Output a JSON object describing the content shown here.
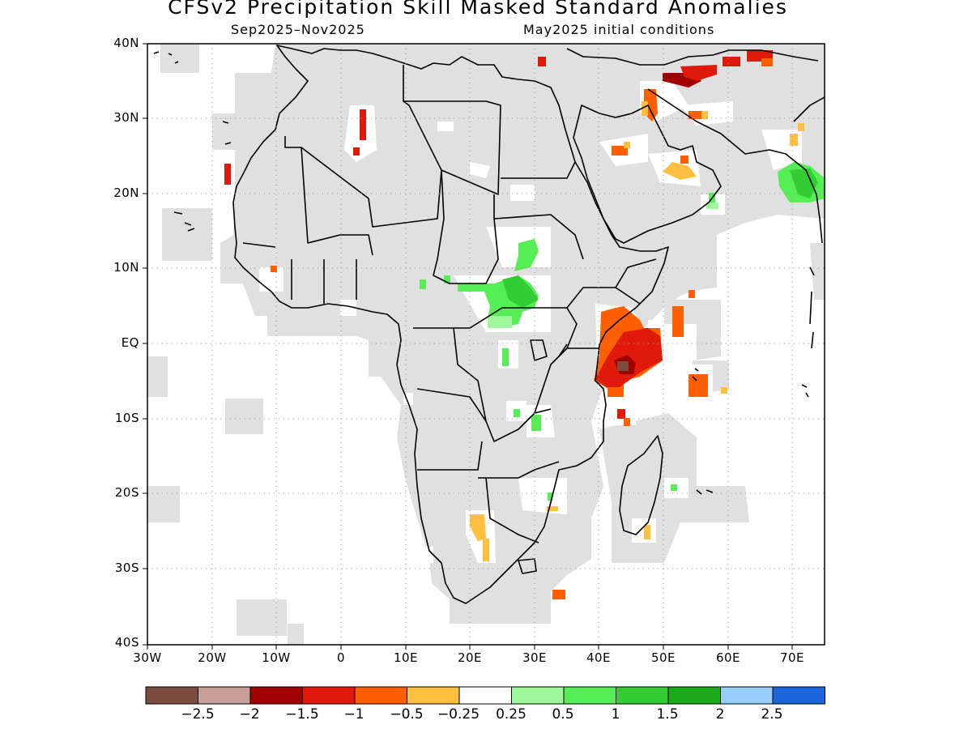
{
  "title": "CFSv2 Precipitation Skill Masked Standard Anomalies",
  "subtitle_left": "Sep2025–Nov2025",
  "subtitle_right": "May2025 initial conditions",
  "y_ticks": [
    "40N",
    "30N",
    "20N",
    "10N",
    "EQ",
    "10S",
    "20S",
    "30S",
    "40S"
  ],
  "x_ticks": [
    "30W",
    "20W",
    "10W",
    "0",
    "10E",
    "20E",
    "30E",
    "40E",
    "50E",
    "60E",
    "70E"
  ],
  "colorbar": {
    "colors": [
      "#7b4b40",
      "#c89e98",
      "#a00000",
      "#e01a0a",
      "#ff5f00",
      "#ffc040",
      "#ffffff",
      "#9ef99a",
      "#55ee55",
      "#33cc33",
      "#1aaa1a",
      "#99ccff",
      "#1a66dd"
    ],
    "labels": [
      "−2.5",
      "−2",
      "−1.5",
      "−1",
      "−0.5",
      "−0.25",
      "0.25",
      "0.5",
      "1",
      "1.5",
      "2",
      "2.5"
    ]
  },
  "map_colors": {
    "masked_gray": "#e0e0e0",
    "land_outline": "#000000",
    "grid": "#999999"
  },
  "chart_data": {
    "type": "heatmap",
    "title": "CFSv2 Precipitation Skill Masked Standard Anomalies",
    "subtitle": "Sep2025–Nov2025 / May2025 initial conditions",
    "xlim": [
      -30,
      75
    ],
    "ylim": [
      -40,
      40
    ],
    "x_ticks": [
      "30W",
      "20W",
      "10W",
      "0",
      "10E",
      "20E",
      "30E",
      "40E",
      "50E",
      "60E",
      "70E"
    ],
    "y_ticks": [
      "40N",
      "30N",
      "20N",
      "10N",
      "EQ",
      "10S",
      "20S",
      "30S",
      "40S"
    ],
    "levels": [
      -2.5,
      -2,
      -1.5,
      -1,
      -0.5,
      -0.25,
      0.25,
      0.5,
      1,
      1.5,
      2,
      2.5
    ],
    "grid": true,
    "anomaly_regions": [
      {
        "region": "Somalia / Kenya coast",
        "lon": [
          40,
          52
        ],
        "lat": [
          -7,
          5
        ],
        "level": "-1.5 to -1"
      },
      {
        "region": "Central Sudan / South Sudan",
        "lon": [
          26,
          34
        ],
        "lat": [
          2,
          14
        ],
        "level": "0.5 to 1"
      },
      {
        "region": "Arabian Sea / Gujarat coast",
        "lon": [
          67,
          75
        ],
        "lat": [
          18,
          23
        ],
        "level": "1 to 1.5"
      },
      {
        "region": "Iran / Iraq",
        "lon": [
          40,
          67
        ],
        "lat": [
          30,
          37
        ],
        "level": "-1.5 to -0.5"
      },
      {
        "region": "Western Indian Ocean near Seychelles",
        "lon": [
          54,
          60
        ],
        "lat": [
          -7,
          -4
        ],
        "level": "-1 to -0.5"
      },
      {
        "region": "Western Sahara coast",
        "lon": [
          -17,
          -16
        ],
        "lat": [
          21,
          24
        ],
        "level": "-1 to -0.5"
      },
      {
        "region": "Southern Africa (Namibia/Botswana)",
        "lon": [
          19,
          22
        ],
        "lat": [
          -30,
          -23
        ],
        "level": "-0.5 to -0.25"
      }
    ]
  }
}
